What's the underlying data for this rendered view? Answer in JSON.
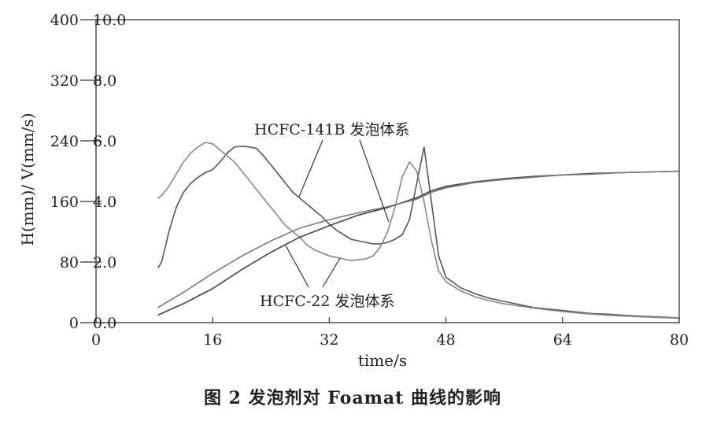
{
  "chart_data": {
    "type": "line",
    "caption": "图 2   发泡剂对 Foamat 曲线的影响",
    "xlabel": "time/s",
    "ylabel": "H(mm)/ V(mm/s)",
    "xlim": [
      0,
      80
    ],
    "y_left_lim": [
      0,
      400
    ],
    "y_right_lim": [
      0,
      10.0
    ],
    "x_ticks": [
      "0",
      "16",
      "32",
      "48",
      "64",
      "80"
    ],
    "y_left_ticks": [
      "0",
      "80",
      "160",
      "240",
      "320",
      "400"
    ],
    "y_right_ticks": [
      "0.0",
      "2.0",
      "4.0",
      "6.0",
      "8.0",
      "10.0"
    ],
    "grid": false,
    "annotations": [
      {
        "text": "HCFC-141B 发泡体系"
      },
      {
        "text": "HCFC-22 发泡体系"
      }
    ],
    "series": [
      {
        "axis": "right",
        "color": "#555555",
        "x": [
          8.5,
          9,
          10,
          11,
          12,
          13,
          14,
          15,
          16,
          17,
          18,
          19,
          20,
          21,
          22,
          23,
          24,
          25,
          26,
          27,
          28,
          29,
          30,
          31,
          32,
          33,
          34,
          35,
          36,
          37,
          38,
          39,
          40,
          41,
          42,
          43,
          44,
          45,
          46,
          47,
          48,
          50,
          52,
          54,
          56,
          58,
          60,
          62,
          64,
          66,
          68,
          70,
          72,
          74,
          76,
          78,
          80
        ],
        "y": [
          1.8,
          2.0,
          3.0,
          3.8,
          4.3,
          4.6,
          4.8,
          4.95,
          5.05,
          5.3,
          5.6,
          5.8,
          5.82,
          5.8,
          5.75,
          5.5,
          5.2,
          4.9,
          4.6,
          4.3,
          4.1,
          3.9,
          3.7,
          3.5,
          3.25,
          3.05,
          2.9,
          2.75,
          2.7,
          2.65,
          2.6,
          2.6,
          2.65,
          2.75,
          2.9,
          3.4,
          4.6,
          5.8,
          4.0,
          2.2,
          1.5,
          1.15,
          0.95,
          0.8,
          0.7,
          0.6,
          0.5,
          0.45,
          0.4,
          0.35,
          0.3,
          0.28,
          0.25,
          0.22,
          0.2,
          0.18,
          0.15
        ]
      },
      {
        "axis": "right",
        "color": "#888888",
        "x": [
          8.5,
          9,
          10,
          11,
          12,
          13,
          14,
          15,
          16,
          17,
          18,
          19,
          20,
          21,
          22,
          23,
          24,
          25,
          26,
          27,
          28,
          29,
          30,
          31,
          32,
          33,
          34,
          35,
          36,
          37,
          38,
          39,
          40,
          41,
          42,
          43,
          44,
          45,
          46,
          47,
          48,
          50,
          52,
          54,
          56,
          58,
          60,
          62,
          64,
          66,
          68,
          70,
          72,
          74,
          76,
          78,
          80
        ],
        "y": [
          4.1,
          4.2,
          4.5,
          4.9,
          5.3,
          5.6,
          5.8,
          5.95,
          5.9,
          5.7,
          5.5,
          5.3,
          5.0,
          4.7,
          4.4,
          4.1,
          3.8,
          3.5,
          3.2,
          3.0,
          2.8,
          2.55,
          2.4,
          2.3,
          2.2,
          2.15,
          2.1,
          2.05,
          2.08,
          2.1,
          2.2,
          2.5,
          3.0,
          3.8,
          4.8,
          5.3,
          5.0,
          4.0,
          2.7,
          1.7,
          1.35,
          1.05,
          0.85,
          0.72,
          0.62,
          0.55,
          0.48,
          0.42,
          0.37,
          0.32,
          0.28,
          0.25,
          0.22,
          0.2,
          0.18,
          0.16,
          0.15
        ]
      },
      {
        "axis": "left",
        "color": "#444444",
        "x": [
          8.5,
          12,
          16,
          20,
          24,
          28,
          32,
          36,
          40,
          44,
          46,
          48,
          52,
          56,
          60,
          64,
          68,
          72,
          76,
          80
        ],
        "y": [
          10,
          25,
          45,
          70,
          93,
          113,
          128,
          142,
          152,
          165,
          174,
          180,
          186,
          190,
          193,
          195,
          197,
          198,
          199,
          200
        ]
      },
      {
        "axis": "left",
        "color": "#777777",
        "x": [
          8.5,
          12,
          16,
          20,
          24,
          28,
          32,
          36,
          40,
          44,
          46,
          48,
          52,
          56,
          60,
          64,
          68,
          72,
          76,
          80
        ],
        "y": [
          20,
          40,
          65,
          88,
          108,
          125,
          136,
          145,
          153,
          163,
          172,
          178,
          185,
          189,
          192,
          195,
          196,
          198,
          199,
          200
        ]
      }
    ]
  }
}
